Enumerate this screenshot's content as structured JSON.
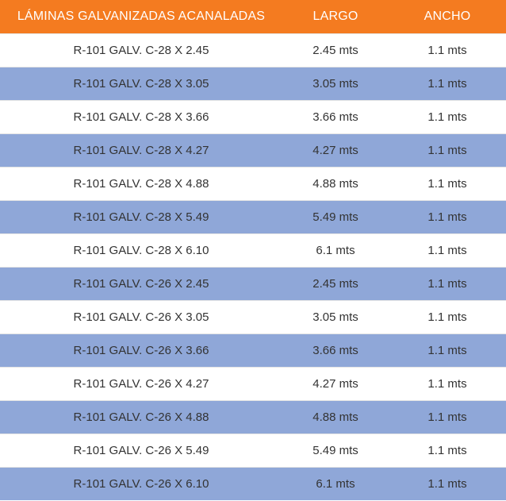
{
  "table": {
    "headers": {
      "name": "LÁMINAS GALVANIZADAS ACANALADAS",
      "largo": "LARGO",
      "ancho": "ANCHO"
    },
    "rows": [
      {
        "name": "R-101 GALV. C-28 X 2.45",
        "largo": "2.45 mts",
        "ancho": "1.1 mts"
      },
      {
        "name": "R-101 GALV. C-28 X 3.05",
        "largo": "3.05 mts",
        "ancho": "1.1 mts"
      },
      {
        "name": "R-101 GALV. C-28 X 3.66",
        "largo": "3.66 mts",
        "ancho": "1.1 mts"
      },
      {
        "name": "R-101 GALV. C-28 X 4.27",
        "largo": "4.27 mts",
        "ancho": "1.1 mts"
      },
      {
        "name": "R-101 GALV. C-28 X 4.88",
        "largo": "4.88 mts",
        "ancho": "1.1 mts"
      },
      {
        "name": "R-101 GALV. C-28 X 5.49",
        "largo": "5.49 mts",
        "ancho": "1.1 mts"
      },
      {
        "name": "R-101 GALV. C-28 X 6.10",
        "largo": "6.1 mts",
        "ancho": "1.1 mts"
      },
      {
        "name": "R-101 GALV. C-26 X 2.45",
        "largo": "2.45 mts",
        "ancho": "1.1 mts"
      },
      {
        "name": "R-101 GALV. C-26 X 3.05",
        "largo": "3.05 mts",
        "ancho": "1.1 mts"
      },
      {
        "name": "R-101 GALV. C-26 X 3.66",
        "largo": "3.66 mts",
        "ancho": "1.1 mts"
      },
      {
        "name": "R-101 GALV. C-26 X 4.27",
        "largo": "4.27 mts",
        "ancho": "1.1 mts"
      },
      {
        "name": "R-101 GALV. C-26 X 4.88",
        "largo": "4.88  mts",
        "ancho": "1.1 mts"
      },
      {
        "name": "R-101 GALV. C-26 X 5.49",
        "largo": "5.49 mts",
        "ancho": "1.1 mts"
      },
      {
        "name": "R-101 GALV. C-26 X 6.10",
        "largo": "6.1 mts",
        "ancho": "1.1 mts"
      }
    ]
  },
  "colors": {
    "header_bg": "#f47b20",
    "stripe": "#8fa7d8",
    "text": "#333333"
  }
}
